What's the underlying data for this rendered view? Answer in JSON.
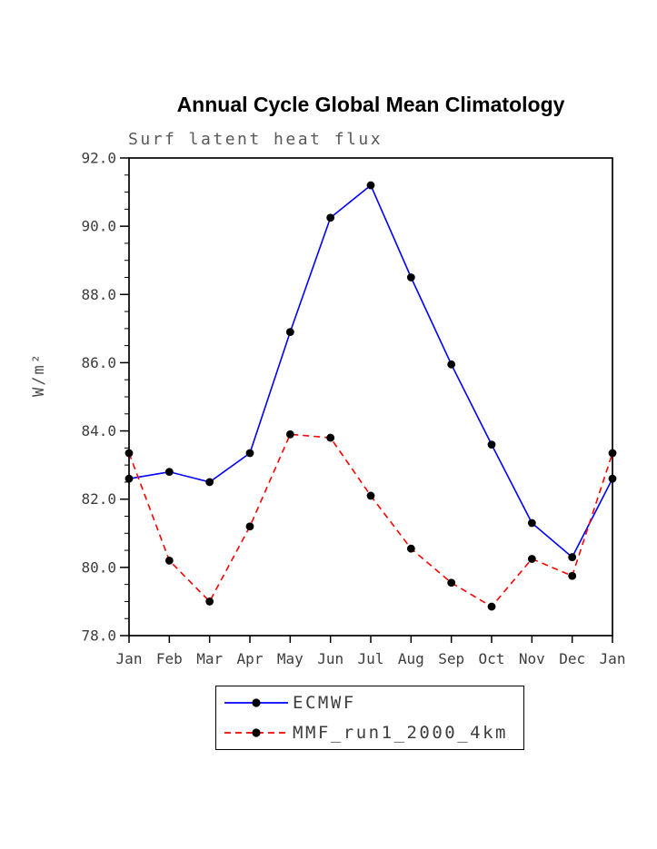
{
  "title": "Annual Cycle Global Mean Climatology",
  "subtitle": "Surf latent heat flux",
  "chart_data": {
    "type": "line",
    "title": "Annual Cycle Global Mean Climatology",
    "subtitle": "Surf latent heat flux",
    "xlabel": "",
    "ylabel": "W/m²",
    "ylim": [
      78.0,
      92.0
    ],
    "ytick_step": 2.0,
    "ytick_minor_step": 0.5,
    "ytick_decimals": 1,
    "grid": false,
    "legend_position": "bottom-center",
    "frame_color": "#000000",
    "categories": [
      "Jan",
      "Feb",
      "Mar",
      "Apr",
      "May",
      "Jun",
      "Jul",
      "Aug",
      "Sep",
      "Oct",
      "Nov",
      "Dec",
      "Jan"
    ],
    "series": [
      {
        "name": "ECMWF",
        "color": "#0000ff",
        "dash": "none",
        "marker": "filled-circle",
        "marker_color": "#000000",
        "values": [
          82.6,
          82.8,
          82.5,
          83.35,
          86.9,
          90.25,
          91.2,
          88.5,
          85.95,
          83.6,
          81.3,
          80.3,
          82.6
        ]
      },
      {
        "name": "MMF_run1_2000_4km",
        "color": "#ff0000",
        "dash": "7 5",
        "marker": "filled-circle",
        "marker_color": "#000000",
        "values": [
          83.35,
          80.2,
          79.0,
          81.2,
          83.9,
          83.8,
          82.1,
          80.55,
          79.55,
          78.85,
          80.25,
          79.75,
          83.35
        ]
      }
    ]
  }
}
